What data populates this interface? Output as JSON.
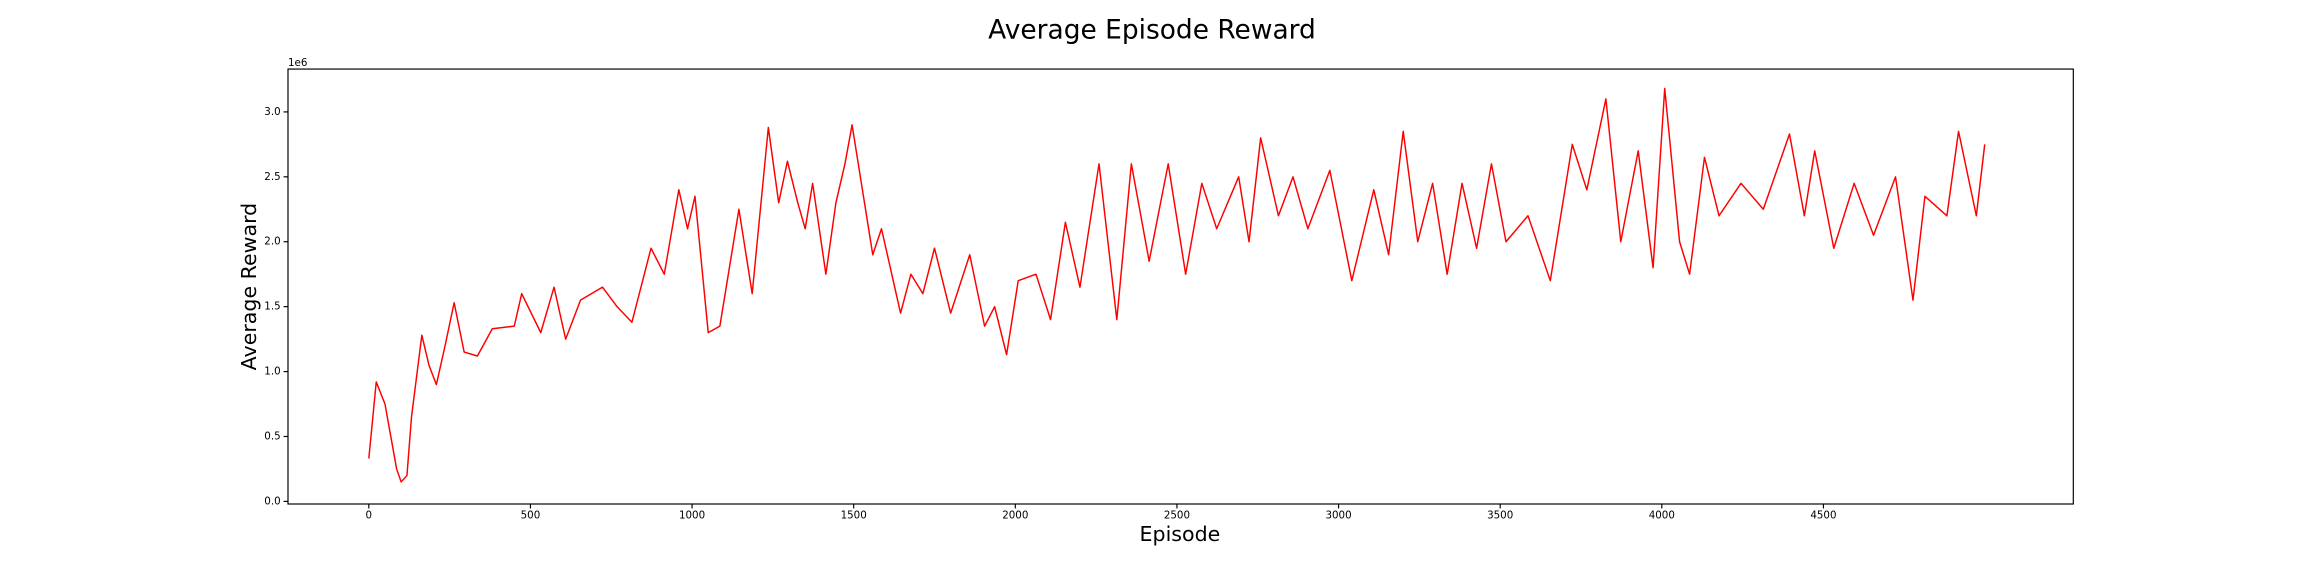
{
  "chart_data": {
    "type": "line",
    "title": "Average Episode Reward",
    "x_label": "Episode",
    "y_label": "Average Reward",
    "y_offset_label": "1e6",
    "x": [
      0,
      23,
      50,
      68,
      86,
      100,
      118,
      132,
      164,
      186,
      209,
      236,
      264,
      295,
      336,
      382,
      450,
      473,
      532,
      573,
      609,
      655,
      723,
      768,
      814,
      873,
      914,
      959,
      986,
      1009,
      1050,
      1086,
      1145,
      1186,
      1236,
      1268,
      1295,
      1327,
      1350,
      1373,
      1414,
      1445,
      1473,
      1495,
      1527,
      1559,
      1586,
      1645,
      1677,
      1714,
      1750,
      1800,
      1859,
      1905,
      1936,
      1973,
      2009,
      2064,
      2109,
      2155,
      2200,
      2259,
      2314,
      2359,
      2414,
      2473,
      2527,
      2577,
      2623,
      2691,
      2723,
      2759,
      2814,
      2859,
      2905,
      2973,
      3041,
      3109,
      3155,
      3200,
      3245,
      3291,
      3336,
      3382,
      3427,
      3473,
      3518,
      3586,
      3655,
      3723,
      3768,
      3827,
      3873,
      3927,
      3973,
      4009,
      4055,
      4086,
      4132,
      4177,
      4245,
      4314,
      4395,
      4441,
      4473,
      4532,
      4595,
      4655,
      4723,
      4777,
      4814,
      4882,
      4918,
      4973,
      4999
    ],
    "series": [
      {
        "name": "Average Reward",
        "color": "#ff0000",
        "values": [
          330000,
          920000,
          750000,
          500000,
          250000,
          150000,
          200000,
          650000,
          1280000,
          1050000,
          900000,
          1200000,
          1530000,
          1150000,
          1120000,
          1330000,
          1350000,
          1600000,
          1300000,
          1650000,
          1250000,
          1550000,
          1650000,
          1500000,
          1380000,
          1950000,
          1750000,
          2400000,
          2100000,
          2350000,
          1300000,
          1350000,
          2250000,
          1600000,
          2880000,
          2300000,
          2620000,
          2300000,
          2100000,
          2450000,
          1750000,
          2300000,
          2600000,
          2900000,
          2400000,
          1900000,
          2100000,
          1450000,
          1750000,
          1600000,
          1950000,
          1450000,
          1900000,
          1350000,
          1500000,
          1130000,
          1700000,
          1750000,
          1400000,
          2150000,
          1650000,
          2600000,
          1400000,
          2600000,
          1850000,
          2600000,
          1750000,
          2450000,
          2100000,
          2500000,
          2000000,
          2800000,
          2200000,
          2500000,
          2100000,
          2550000,
          1700000,
          2400000,
          1900000,
          2850000,
          2000000,
          2450000,
          1750000,
          2450000,
          1950000,
          2600000,
          2000000,
          2200000,
          1700000,
          2750000,
          2400000,
          3100000,
          2000000,
          2700000,
          1800000,
          3180000,
          2000000,
          1750000,
          2650000,
          2200000,
          2450000,
          2250000,
          2830000,
          2200000,
          2700000,
          1950000,
          2450000,
          2050000,
          2500000,
          1550000,
          2350000,
          2200000,
          2850000,
          2200000,
          2750000
        ]
      }
    ],
    "xlim": [
      -250,
      5273
    ],
    "ylim": [
      -20000,
      3330000
    ],
    "xticks": [
      0,
      500,
      1000,
      1500,
      2000,
      2500,
      3000,
      3500,
      4000,
      4500
    ],
    "yticks": [
      {
        "value": 0,
        "label": "0.0"
      },
      {
        "value": 500000,
        "label": "0.5"
      },
      {
        "value": 1000000,
        "label": "1.0"
      },
      {
        "value": 1500000,
        "label": "1.5"
      },
      {
        "value": 2000000,
        "label": "2.0"
      },
      {
        "value": 2500000,
        "label": "2.5"
      },
      {
        "value": 3000000,
        "label": "3.0"
      }
    ]
  }
}
